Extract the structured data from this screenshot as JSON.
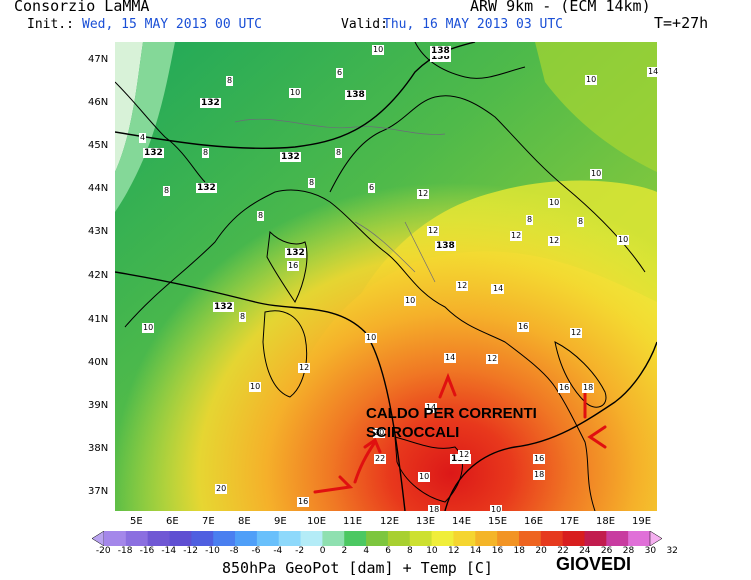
{
  "header": {
    "producer": "Consorzio LaMMA",
    "model": "ARW 9km - (ECM 14km)",
    "init_label": "Init.:",
    "init_value": "Wed, 15 MAY 2013  00 UTC",
    "valid_label": "Valid:",
    "valid_value": "Thu, 16 MAY 2013  03 UTC",
    "lead_time": "T=+27h"
  },
  "axes": {
    "lat_labels": [
      "47N",
      "46N",
      "45N",
      "44N",
      "43N",
      "42N",
      "41N",
      "40N",
      "39N",
      "38N",
      "37N"
    ],
    "lon_labels": [
      "5E",
      "6E",
      "7E",
      "8E",
      "9E",
      "10E",
      "11E",
      "12E",
      "13E",
      "14E",
      "15E",
      "16E",
      "17E",
      "18E",
      "19E"
    ]
  },
  "colorbar": {
    "labels": [
      "-20",
      "-18",
      "-16",
      "-14",
      "-12",
      "-10",
      "-8",
      "-6",
      "-4",
      "-2",
      "0",
      "2",
      "4",
      "6",
      "8",
      "10",
      "12",
      "14",
      "16",
      "18",
      "20",
      "22",
      "24",
      "26",
      "28",
      "30",
      "32"
    ],
    "colors": [
      "#b9a3f0",
      "#a487ea",
      "#8b6fe0",
      "#7058d4",
      "#5f4fd2",
      "#4f5fe0",
      "#4a7ff0",
      "#4f9ff8",
      "#69c0fb",
      "#8ed9fb",
      "#b4ecf7",
      "#8fe0b0",
      "#4cc862",
      "#7dc63e",
      "#a8d030",
      "#cde030",
      "#f0ee3a",
      "#f5d530",
      "#f4b528",
      "#f29424",
      "#ee6420",
      "#e63a1e",
      "#d81e1e",
      "#c21c4e",
      "#c83ca0",
      "#e070d8",
      "#f5b0f0"
    ]
  },
  "footer": {
    "variable": "850hPa GeoPot [dam] + Temp [C]",
    "day": "GIOVEDI"
  },
  "annotation": {
    "line1": "CALDO PER CORRENTI",
    "line2": "SCIROCCALI"
  },
  "contour_labels": {
    "geopotential": [
      "138",
      "132",
      "138",
      "132",
      "132",
      "132",
      "132",
      "138",
      "132",
      "138",
      "138"
    ],
    "temperature": [
      "10",
      "10",
      "14",
      "6",
      "8",
      "10",
      "4",
      "8",
      "8",
      "8",
      "8",
      "6",
      "12",
      "8",
      "10",
      "10",
      "8",
      "8",
      "10",
      "12",
      "12",
      "12",
      "12",
      "12",
      "10",
      "8",
      "10",
      "16",
      "12",
      "14",
      "12",
      "16",
      "14",
      "18",
      "16",
      "18",
      "20",
      "16",
      "18",
      "10",
      "10",
      "12",
      "22",
      "20",
      "16",
      "12",
      "10",
      "10",
      "14"
    ]
  }
}
